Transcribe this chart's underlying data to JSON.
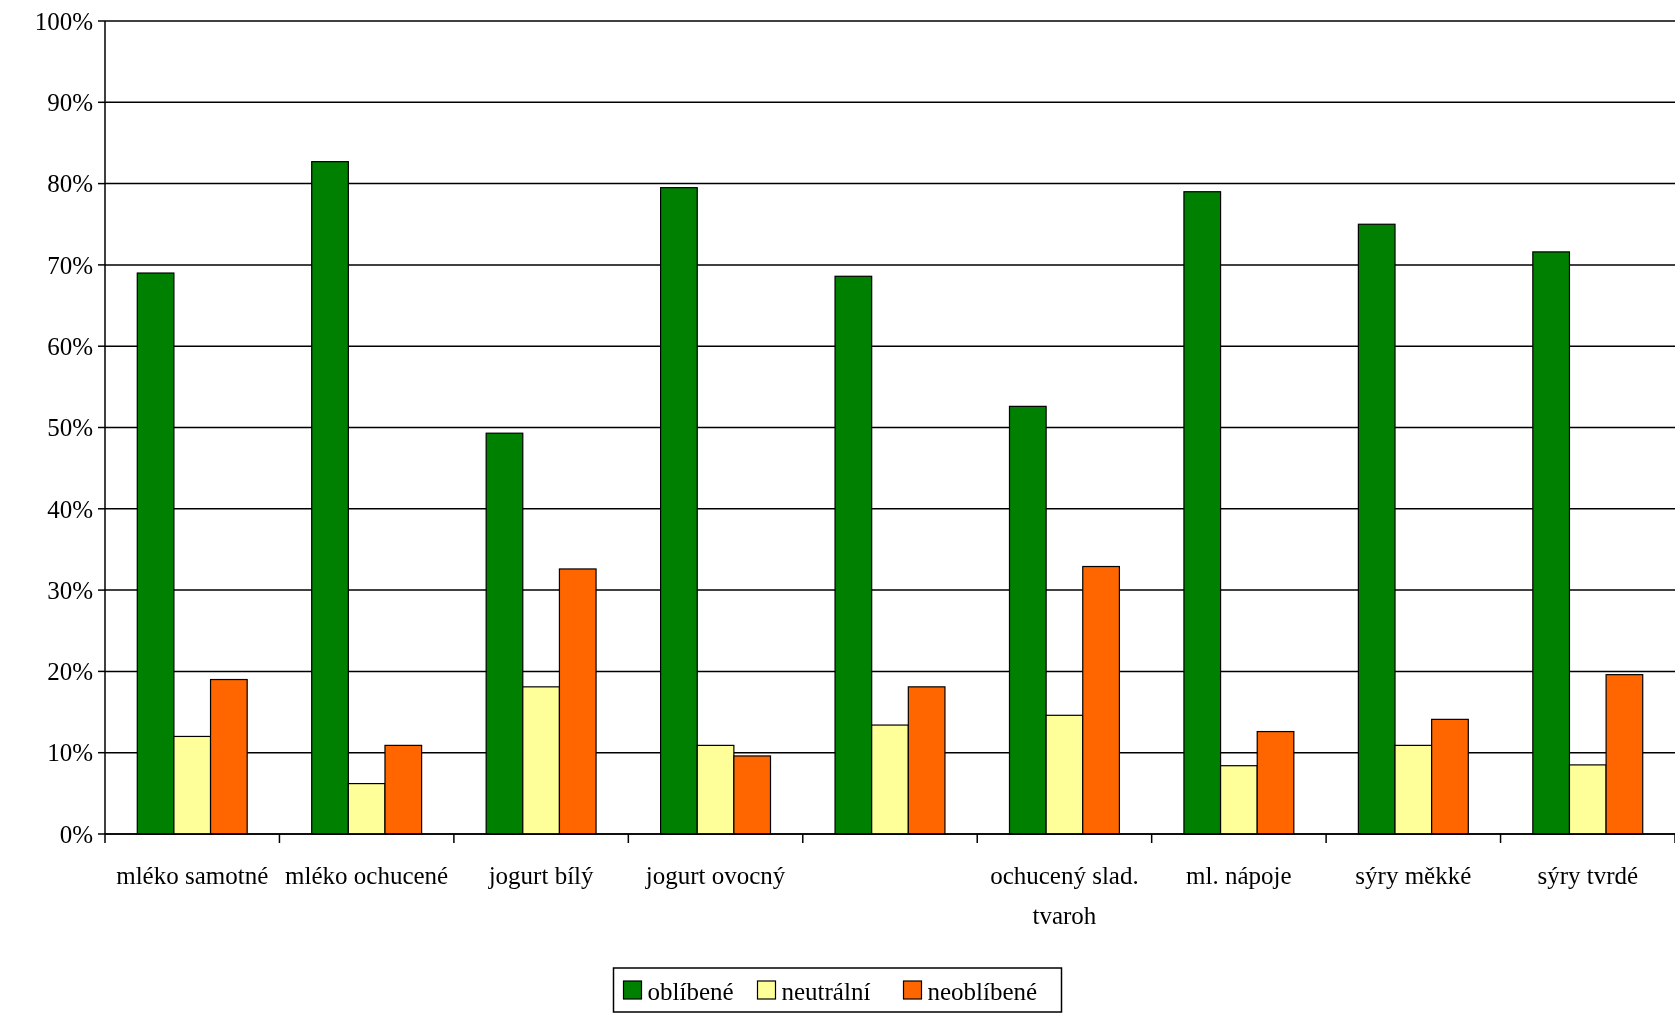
{
  "chart_data": {
    "type": "bar",
    "categories": [
      "mléko samotné",
      "mléko ochucené",
      "jogurt bílý",
      "jogurt ovocný",
      null,
      "ochucený slad. tvaroh",
      "ml. nápoje",
      "sýry měkké",
      "sýry tvrdé"
    ],
    "series": [
      {
        "name": "oblíbené",
        "color": "#008000",
        "values": [
          69,
          82.7,
          49.3,
          79.5,
          68.6,
          52.6,
          79,
          75,
          71.6
        ]
      },
      {
        "name": "neutrální",
        "color": "#ffff99",
        "values": [
          12,
          6.2,
          18.1,
          10.9,
          13.4,
          14.6,
          8.4,
          10.9,
          8.5
        ]
      },
      {
        "name": "neoblíbené",
        "color": "#ff6600",
        "values": [
          19,
          10.9,
          32.6,
          9.6,
          18.1,
          32.9,
          12.6,
          14.1,
          19.6
        ]
      }
    ],
    "ylim": [
      0,
      100
    ],
    "yticks": [
      {
        "value": 0,
        "label": "0%"
      },
      {
        "value": 10,
        "label": "10%"
      },
      {
        "value": 20,
        "label": "20%"
      },
      {
        "value": 30,
        "label": "30%"
      },
      {
        "value": 40,
        "label": "40%"
      },
      {
        "value": 50,
        "label": "50%"
      },
      {
        "value": 60,
        "label": "60%"
      },
      {
        "value": 70,
        "label": "70%"
      },
      {
        "value": 80,
        "label": "80%"
      },
      {
        "value": 90,
        "label": "90%"
      },
      {
        "value": 100,
        "label": "100%"
      }
    ],
    "grid": "y",
    "legend": "bottom"
  }
}
